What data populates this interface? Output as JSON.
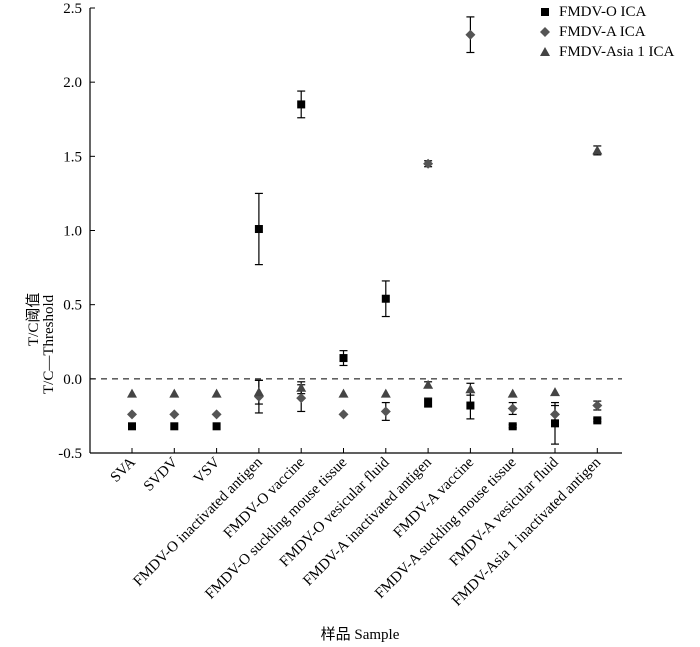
{
  "chart_data": {
    "type": "scatter",
    "title": "",
    "ylabel_cn": "T/C阈值",
    "ylabel_en": "T/C—Threshold",
    "xlabel": "样品 Sample",
    "ylim": [
      -0.5,
      2.5
    ],
    "yticks": [
      "-0.5",
      "0.0",
      "0.5",
      "1.0",
      "1.5",
      "2.0",
      "2.5"
    ],
    "threshold_line": 0.0,
    "categories": [
      "SVA",
      "SVDV",
      "VSV",
      "FMDV-O inactivated antigen",
      "FMDV-O vaccine",
      "FMDV-O suckling mouse tissue",
      "FMDV-O vesicular fluid",
      "FMDV-A inactivated antigen",
      "FMDV-A vaccine",
      "FMDV-A suckling mouse tissue",
      "FMDV-A vesicular fluid",
      "FMDV-Asia 1 inactivated antigen"
    ],
    "series": [
      {
        "name": "FMDV-O ICA",
        "marker": "square",
        "color": "#000000",
        "values": [
          -0.32,
          -0.32,
          -0.32,
          1.01,
          1.85,
          0.14,
          0.54,
          -0.16,
          -0.18,
          -0.32,
          -0.3,
          -0.28
        ],
        "errors": [
          0,
          0,
          0,
          0.24,
          0.09,
          0.05,
          0.12,
          0.03,
          0.09,
          0.01,
          0.14,
          0.01
        ]
      },
      {
        "name": "FMDV-A ICA",
        "marker": "diamond",
        "color": "#555555",
        "values": [
          -0.24,
          -0.24,
          -0.24,
          -0.12,
          -0.13,
          -0.24,
          -0.22,
          1.45,
          2.32,
          -0.2,
          -0.24,
          -0.18
        ],
        "errors": [
          0,
          0,
          0,
          0.11,
          0.09,
          0,
          0.06,
          0.02,
          0.12,
          0.04,
          0.06,
          0.03
        ]
      },
      {
        "name": "FMDV-Asia 1 ICA",
        "marker": "triangle",
        "color": "#444444",
        "values": [
          -0.1,
          -0.1,
          -0.1,
          -0.09,
          -0.06,
          -0.1,
          -0.1,
          -0.04,
          -0.07,
          -0.1,
          -0.09,
          1.54
        ],
        "errors": [
          0,
          0,
          0,
          0.08,
          0.04,
          0,
          0,
          0.02,
          0.04,
          0,
          0,
          0.03
        ]
      }
    ]
  }
}
